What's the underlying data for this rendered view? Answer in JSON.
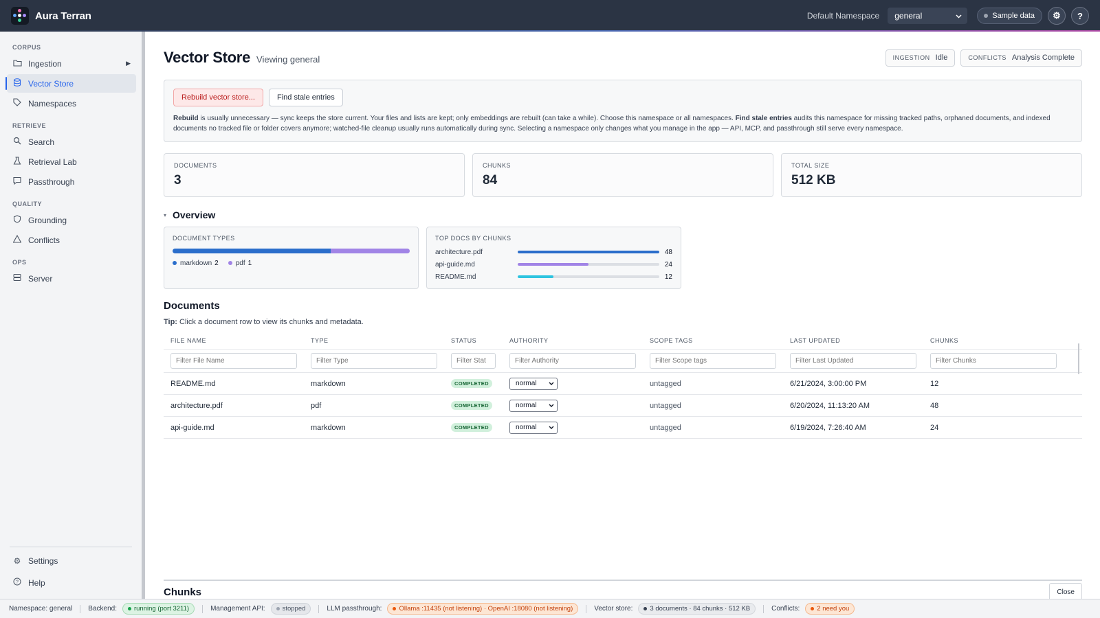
{
  "app": {
    "title": "Aura Terran"
  },
  "topbar": {
    "namespace_label": "Default Namespace",
    "namespace_value": "general",
    "sample_label": "Sample data"
  },
  "sidebar": {
    "sections": [
      {
        "label": "CORPUS",
        "items": [
          {
            "label": "Ingestion",
            "icon": "folder-icon",
            "expandable": true
          },
          {
            "label": "Vector Store",
            "icon": "database-icon",
            "active": true
          },
          {
            "label": "Namespaces",
            "icon": "tag-icon"
          }
        ]
      },
      {
        "label": "RETRIEVE",
        "items": [
          {
            "label": "Search",
            "icon": "search-icon"
          },
          {
            "label": "Retrieval Lab",
            "icon": "flask-icon"
          },
          {
            "label": "Passthrough",
            "icon": "chat-icon"
          }
        ]
      },
      {
        "label": "QUALITY",
        "items": [
          {
            "label": "Grounding",
            "icon": "shield-icon"
          },
          {
            "label": "Conflicts",
            "icon": "warning-icon"
          }
        ]
      },
      {
        "label": "OPS",
        "items": [
          {
            "label": "Server",
            "icon": "server-icon"
          }
        ]
      }
    ],
    "bottom": [
      {
        "label": "Settings",
        "icon": "gear-icon"
      },
      {
        "label": "Help",
        "icon": "help-icon"
      }
    ]
  },
  "page": {
    "title": "Vector Store",
    "subtitle": "Viewing general",
    "badges": [
      {
        "key": "INGESTION",
        "value": "Idle"
      },
      {
        "key": "CONFLICTS",
        "value": "Analysis Complete"
      }
    ]
  },
  "actions": {
    "rebuild_label": "Rebuild vector store...",
    "stale_label": "Find stale entries",
    "help_rebuild_bold": "Rebuild",
    "help_text_1": " is usually unnecessary — sync keeps the store current. Your files and lists are kept; only embeddings are rebuilt (can take a while). Choose this namespace or all namespaces. ",
    "help_stale_bold": "Find stale entries",
    "help_text_2": " audits this namespace for missing tracked paths, orphaned documents, and indexed documents no tracked file or folder covers anymore; watched-file cleanup usually runs automatically during sync. Selecting a namespace only changes what you manage in the app — API, MCP, and passthrough still serve every namespace."
  },
  "stats": [
    {
      "key": "DOCUMENTS",
      "value": "3"
    },
    {
      "key": "CHUNKS",
      "value": "84"
    },
    {
      "key": "TOTAL SIZE",
      "value": "512 KB"
    }
  ],
  "overview": {
    "title": "Overview",
    "doc_types": {
      "label": "DOCUMENT TYPES",
      "items": [
        {
          "name": "markdown",
          "count": 2,
          "color": "#2b6ecb"
        },
        {
          "name": "pdf",
          "count": 1,
          "color": "#a184e6"
        }
      ]
    },
    "top_docs": {
      "label": "TOP DOCS BY CHUNKS",
      "max": 48,
      "items": [
        {
          "name": "architecture.pdf",
          "value": 48,
          "color": "#2b6ecb"
        },
        {
          "name": "api-guide.md",
          "value": 24,
          "color": "#a184e6"
        },
        {
          "name": "README.md",
          "value": 12,
          "color": "#2ec4e0"
        }
      ]
    }
  },
  "documents": {
    "title": "Documents",
    "tip_bold": "Tip:",
    "tip_text": " Click a document row to view its chunks and metadata.",
    "columns": [
      {
        "label": "FILE NAME",
        "filter": "Filter File Name"
      },
      {
        "label": "TYPE",
        "filter": "Filter Type"
      },
      {
        "label": "STATUS",
        "filter": "Filter Stat"
      },
      {
        "label": "AUTHORITY",
        "filter": "Filter Authority"
      },
      {
        "label": "SCOPE TAGS",
        "filter": "Filter Scope tags"
      },
      {
        "label": "LAST UPDATED",
        "filter": "Filter Last Updated"
      },
      {
        "label": "CHUNKS",
        "filter": "Filter Chunks"
      }
    ],
    "rows": [
      {
        "file": "README.md",
        "type": "markdown",
        "status": "COMPLETED",
        "authority": "normal",
        "scope": "untagged",
        "updated": "6/21/2024, 3:00:00 PM",
        "chunks": "12"
      },
      {
        "file": "architecture.pdf",
        "type": "pdf",
        "status": "COMPLETED",
        "authority": "normal",
        "scope": "untagged",
        "updated": "6/20/2024, 11:13:20 AM",
        "chunks": "48"
      },
      {
        "file": "api-guide.md",
        "type": "markdown",
        "status": "COMPLETED",
        "authority": "normal",
        "scope": "untagged",
        "updated": "6/19/2024, 7:26:40 AM",
        "chunks": "24"
      }
    ]
  },
  "chunks": {
    "title": "Chunks",
    "close_label": "Close"
  },
  "footer": {
    "namespace": "Namespace: general",
    "backend_label": "Backend:",
    "backend_value": "running (port 3211)",
    "mgmt_label": "Management API:",
    "mgmt_value": "stopped",
    "llm_label": "LLM passthrough:",
    "llm_value": "Ollama :11435 (not listening) · OpenAI :18080 (not listening)",
    "vector_label": "Vector store:",
    "vector_value": "3 documents · 84 chunks · 512 KB",
    "conflicts_label": "Conflicts:",
    "conflicts_value": "2 need you"
  }
}
